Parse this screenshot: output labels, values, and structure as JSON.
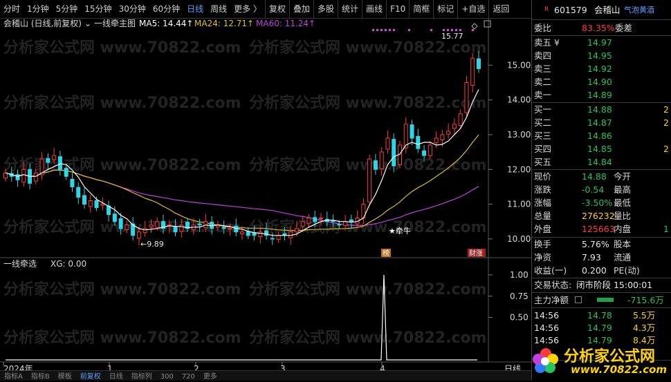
{
  "toolbar": {
    "periods": [
      "分时",
      "1分钟",
      "5分钟",
      "15分钟",
      "30分钟",
      "60分钟",
      "日线",
      "周线",
      "更多 〉"
    ],
    "active_period": "日线",
    "tools": [
      "复权",
      "叠加",
      "多股",
      "统计",
      "画线",
      "F10",
      "简框",
      "标记",
      "+自选",
      "返回"
    ]
  },
  "main_chart": {
    "title": "会稽山 (日线,前复权)",
    "indicator": "一线牵主图",
    "ma5_label": "MA5: 14.44↑",
    "ma24_label": "MA24: 12.71↑",
    "ma60_label": "MA60: 11.24↑",
    "high_label": "15.77",
    "low_label": "←9.89",
    "signal_label": "★牵牛",
    "badge_bang": "榜",
    "badge_caizhang": "财涨",
    "yticks": [
      "15.00",
      "14.00",
      "13.00",
      "12.00",
      "11.00",
      "10.00"
    ]
  },
  "sub_chart": {
    "title": "一线牵选",
    "xg_label": "XG: 0.00",
    "yticks": [
      "1.00",
      "0.75",
      "0.50"
    ]
  },
  "xaxis": {
    "labels": [
      "2024年",
      "1",
      "2",
      "3",
      "4"
    ],
    "period": "日线"
  },
  "watermark": "分析家公式网 www.70822.com",
  "watermark_logo": "分析家公式网",
  "watermark_url": "www.70822.com",
  "colors": {
    "up": "#ff3b3b",
    "down": "#2fd6e6",
    "ma5": "#ffffff",
    "ma24": "#e0c020",
    "ma60": "#c040e0",
    "xg": "#ffffff"
  },
  "chart_data": {
    "type": "candlestick",
    "x": [
      "2023-12",
      "2024-01",
      "2024-02",
      "2024-03",
      "2024-04"
    ],
    "ylim": [
      9.6,
      16.0
    ],
    "high": 15.77,
    "low": 9.89,
    "ma5_last": 14.44,
    "ma24_last": 12.71,
    "ma60_last": 11.24,
    "close_trend": [
      11.9,
      11.8,
      11.7,
      12.0,
      11.6,
      11.9,
      12.3,
      12.2,
      12.4,
      12.0,
      11.8,
      11.5,
      11.2,
      11.0,
      11.1,
      10.9,
      11.0,
      10.7,
      10.5,
      10.3,
      10.4,
      10.1,
      10.2,
      10.3,
      10.4,
      10.5,
      10.3,
      10.4,
      10.2,
      10.4,
      10.3,
      10.4,
      10.4,
      10.5,
      10.3,
      10.4,
      10.3,
      10.3,
      10.2,
      10.2,
      10.1,
      10.1,
      10.2,
      10.1,
      10.0,
      10.1,
      10.1,
      10.2,
      10.3,
      10.5,
      10.6,
      10.5,
      10.6,
      10.5,
      10.5,
      10.4,
      10.5,
      10.5,
      10.6,
      11.0,
      12.3,
      12.0,
      12.5,
      12.9,
      12.1,
      12.7,
      13.3,
      12.9,
      12.6,
      12.4,
      12.7,
      12.9,
      13.0,
      13.1,
      13.3,
      13.6,
      14.5,
      15.2,
      14.9
    ],
    "xg": {
      "ylim": [
        0,
        1
      ],
      "spike_at": "2024-04",
      "value": 1.0
    }
  },
  "quote": {
    "badge": "R",
    "code": "601579",
    "name": "会稽山",
    "sector": "气泡黄酒",
    "webi_label": "委比",
    "webi_value": "83.35%",
    "weicha_label": "委差",
    "sells": [
      {
        "label": "卖五 ¥",
        "price": "14.97"
      },
      {
        "label": "卖四",
        "price": "14.95"
      },
      {
        "label": "卖三",
        "price": "14.92"
      },
      {
        "label": "卖二",
        "price": "14.90"
      },
      {
        "label": "卖一",
        "price": "14.89"
      }
    ],
    "buys": [
      {
        "label": "买一",
        "price": "14.88",
        "vol": "2"
      },
      {
        "label": "买二",
        "price": "14.87",
        "vol": "2"
      },
      {
        "label": "买三",
        "price": "14.86",
        "vol": ""
      },
      {
        "label": "买四",
        "price": "14.85",
        "vol": "2"
      },
      {
        "label": "买五",
        "price": "14.84",
        "vol": ""
      }
    ],
    "stats": [
      {
        "l1": "现价",
        "v1": "14.88",
        "c1": "grn",
        "l2": "今开"
      },
      {
        "l1": "涨跌",
        "v1": "-0.54",
        "c1": "grn",
        "l2": "最高"
      },
      {
        "l1": "涨幅",
        "v1": "-3.50%",
        "c1": "grn",
        "l2": "最低"
      },
      {
        "l1": "总量",
        "v1": "276232",
        "c1": "yel",
        "l2": "量比"
      },
      {
        "l1": "外盘",
        "v1": "125663",
        "c1": "red",
        "l2": "内盘",
        "v3": "1",
        "c3": "grn"
      }
    ],
    "stats2": [
      {
        "l1": "换手",
        "v1": "5.76%",
        "l2": "股本"
      },
      {
        "l1": "净资",
        "v1": "7.93",
        "l2": "流通"
      },
      {
        "l1": "收益(一)",
        "v1": "0.200",
        "l2": "PE(动)"
      }
    ],
    "status_label": "交易状态:",
    "status_value": "闭市阶段 15:00:01",
    "main_flow_label": "主力净额",
    "main_flow_value": "-715.6万",
    "ticks": [
      {
        "time": "14:56",
        "price": "14.78",
        "vol": "5.5万"
      },
      {
        "time": "14:56",
        "price": "14.79",
        "vol": "4.3万"
      },
      {
        "time": "14:56",
        "price": "14.79",
        "vol": "8.4万"
      }
    ],
    "period_label": "日线"
  },
  "bottom_tabs": [
    "指标A",
    "指标B",
    "模板",
    "前复权",
    "日线",
    "指标列",
    "300",
    "720",
    "更多"
  ]
}
